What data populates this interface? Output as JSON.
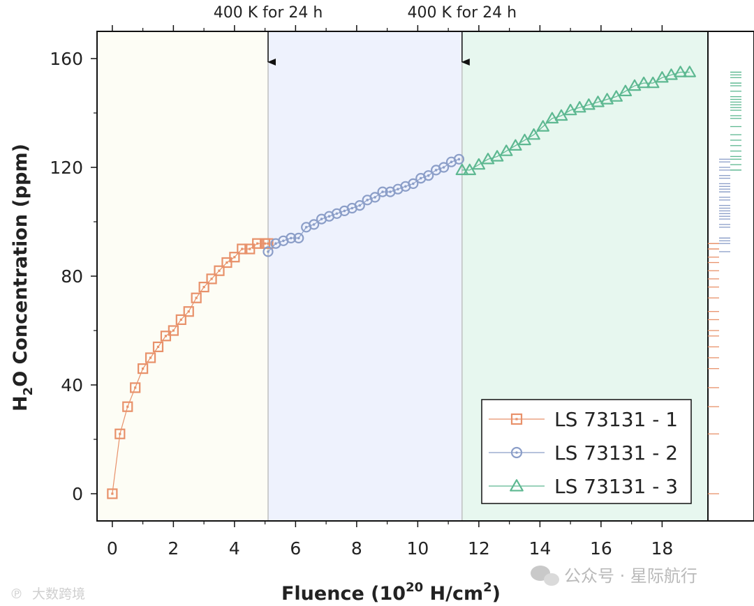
{
  "chart_data": {
    "type": "scatter",
    "x_axis": {
      "label_prefix": "Fluence (10",
      "label_sup1": "20",
      "label_mid": " H/cm",
      "label_sup2": "2",
      "label_suffix": ")",
      "range": [
        -0.5,
        19.5
      ],
      "ticks": [
        0,
        2,
        4,
        6,
        8,
        10,
        12,
        14,
        16,
        18
      ],
      "tick_labels": [
        "0",
        "2",
        "4",
        "6",
        "8",
        "10",
        "12",
        "14",
        "16",
        "18"
      ]
    },
    "y_axis": {
      "label_prefix": "H",
      "label_sub": "2",
      "label_suffix": "O Concentration (ppm)",
      "range": [
        -10,
        170
      ],
      "ticks": [
        0,
        40,
        80,
        120,
        160
      ],
      "tick_labels": [
        "0",
        "40",
        "80",
        "120",
        "160"
      ]
    },
    "regions": [
      {
        "from": -0.5,
        "to": 5.1,
        "color": "#fdfdf5"
      },
      {
        "from": 5.1,
        "to": 11.45,
        "color": "#eef2fd"
      },
      {
        "from": 11.45,
        "to": 19.5,
        "color": "#e7f7ef"
      }
    ],
    "annotations": [
      {
        "text": "400 K for 24 h",
        "x": 5.1
      },
      {
        "text": "400 K for 24 h",
        "x": 11.45
      }
    ],
    "legend_position": "bottom-right",
    "series": [
      {
        "name": "LS 73131 - 1",
        "marker": "square",
        "color": "#e8916a",
        "x": [
          0.0,
          0.25,
          0.5,
          0.75,
          1.0,
          1.25,
          1.5,
          1.75,
          2.0,
          2.25,
          2.5,
          2.75,
          3.0,
          3.25,
          3.5,
          3.75,
          4.0,
          4.25,
          4.5,
          4.75,
          5.0,
          5.1
        ],
        "y": [
          0,
          22,
          32,
          39,
          46,
          50,
          54,
          58,
          60,
          64,
          67,
          72,
          76,
          79,
          82,
          85,
          87,
          90,
          90,
          92,
          92,
          92
        ]
      },
      {
        "name": "LS 73131 - 2",
        "marker": "circle",
        "color": "#8b9ec8",
        "x": [
          5.1,
          5.35,
          5.6,
          5.85,
          6.1,
          6.35,
          6.6,
          6.85,
          7.1,
          7.35,
          7.6,
          7.85,
          8.1,
          8.35,
          8.6,
          8.85,
          9.1,
          9.35,
          9.6,
          9.85,
          10.1,
          10.35,
          10.6,
          10.85,
          11.1,
          11.35
        ],
        "y": [
          89,
          92,
          93,
          94,
          94,
          98,
          99,
          101,
          102,
          103,
          104,
          105,
          106,
          108,
          109,
          111,
          111,
          112,
          113,
          114,
          116,
          117,
          119,
          120,
          122,
          123
        ]
      },
      {
        "name": "LS 73131 - 3",
        "marker": "triangle",
        "color": "#5db891",
        "x": [
          11.45,
          11.7,
          12.0,
          12.3,
          12.6,
          12.9,
          13.2,
          13.5,
          13.8,
          14.1,
          14.4,
          14.7,
          15.0,
          15.3,
          15.6,
          15.9,
          16.2,
          16.5,
          16.8,
          17.1,
          17.4,
          17.7,
          18.0,
          18.3,
          18.6,
          18.9
        ],
        "y": [
          119,
          119,
          121,
          123,
          124,
          126,
          128,
          130,
          132,
          135,
          138,
          139,
          141,
          142,
          143,
          144,
          145,
          146,
          148,
          150,
          151,
          151,
          153,
          154,
          155,
          155
        ]
      }
    ]
  },
  "watermarks": {
    "wechat": "公众号 · 星际航行",
    "corner": "大数跨境"
  }
}
